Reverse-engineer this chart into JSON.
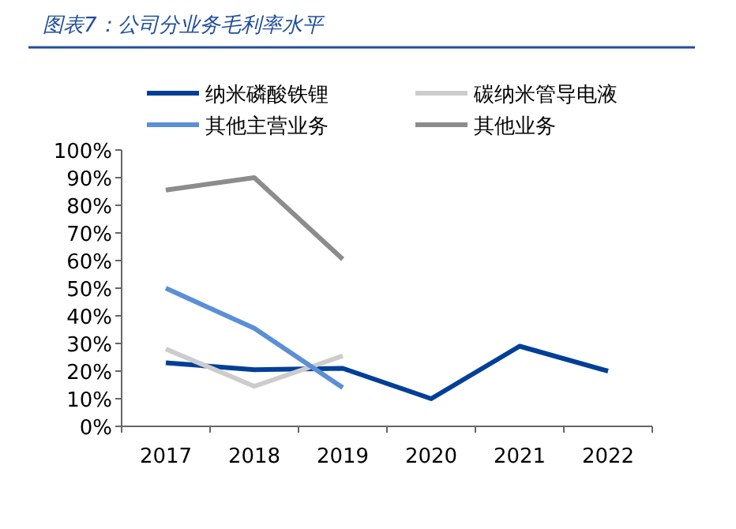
{
  "chart_data": {
    "type": "line",
    "title": "图表7：公司分业务毛利率水平",
    "categories": [
      "2017",
      "2018",
      "2019",
      "2020",
      "2021",
      "2022"
    ],
    "series": [
      {
        "name": "纳米磷酸铁锂",
        "color": "#003f98",
        "values": [
          23,
          20.5,
          21,
          10,
          29,
          20
        ]
      },
      {
        "name": "碳纳米管导电液",
        "color": "#cccccc",
        "values": [
          28,
          14.5,
          25.5,
          null,
          null,
          null
        ]
      },
      {
        "name": "其他主营业务",
        "color": "#5b8fd6",
        "values": [
          50,
          35.5,
          14,
          null,
          null,
          null
        ]
      },
      {
        "name": "其他业务",
        "color": "#8c8c8c",
        "values": [
          85.5,
          90,
          60.5,
          null,
          null,
          null
        ]
      }
    ],
    "ylim": [
      0,
      100
    ],
    "yticks": [
      {
        "value": 0,
        "label": "0%"
      },
      {
        "value": 10,
        "label": "10%"
      },
      {
        "value": 20,
        "label": "20%"
      },
      {
        "value": 30,
        "label": "30%"
      },
      {
        "value": 40,
        "label": "40%"
      },
      {
        "value": 50,
        "label": "50%"
      },
      {
        "value": 60,
        "label": "60%"
      },
      {
        "value": 70,
        "label": "70%"
      },
      {
        "value": 80,
        "label": "80%"
      },
      {
        "value": 90,
        "label": "90%"
      },
      {
        "value": 100,
        "label": "100%"
      }
    ],
    "grid": false,
    "legend": "top",
    "marker": "none",
    "line_style": "solid"
  }
}
